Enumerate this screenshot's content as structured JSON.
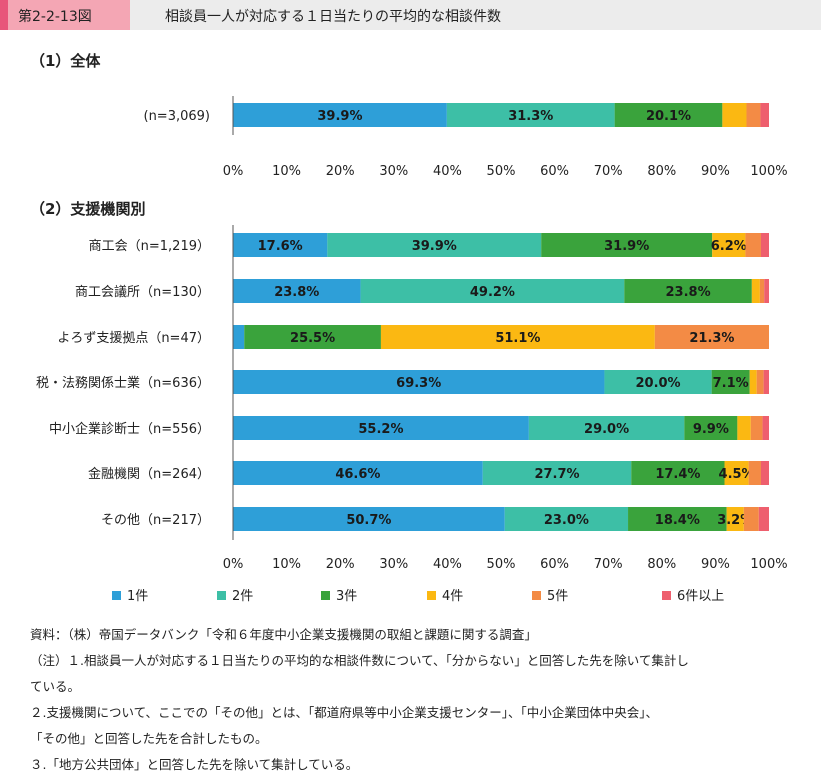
{
  "header": {
    "figure_number": "第2-2-13図",
    "title": "相談員一人が対応する１日当たりの平均的な相談件数"
  },
  "section1_title": "（1）全体",
  "section2_title": "（2）支援機関別",
  "colors": [
    "#2e9fd8",
    "#3dbfa6",
    "#3aa33c",
    "#fbb812",
    "#f38b45",
    "#ee5f6e"
  ],
  "chart_data": [
    {
      "type": "bar",
      "orientation": "horizontal",
      "stacked": "percent",
      "categories": [
        "(n=3,069)"
      ],
      "series": [
        {
          "name": "1件",
          "values": [
            39.9
          ]
        },
        {
          "name": "2件",
          "values": [
            31.3
          ]
        },
        {
          "name": "3件",
          "values": [
            20.1
          ]
        },
        {
          "name": "4件",
          "values": [
            4.5
          ]
        },
        {
          "name": "5件",
          "values": [
            2.6
          ]
        },
        {
          "name": "6件以上",
          "values": [
            1.6
          ]
        }
      ],
      "data_labels": [
        [
          "39.9%",
          "31.3%",
          "20.1%",
          "",
          "",
          ""
        ]
      ],
      "xticks": [
        "0%",
        "10%",
        "20%",
        "30%",
        "40%",
        "50%",
        "60%",
        "70%",
        "80%",
        "90%",
        "100%"
      ],
      "xlim": [
        0,
        100
      ]
    },
    {
      "type": "bar",
      "orientation": "horizontal",
      "stacked": "percent",
      "categories": [
        "商工会（n=1,219）",
        "商工会議所（n=130）",
        "よろず支援拠点（n=47）",
        "税・法務関係士業（n=636）",
        "中小企業診断士（n=556）",
        "金融機関（n=264）",
        "その他（n=217）"
      ],
      "series": [
        {
          "name": "1件",
          "values": [
            17.6,
            23.8,
            2.1,
            69.3,
            55.2,
            46.6,
            50.7
          ]
        },
        {
          "name": "2件",
          "values": [
            39.9,
            49.2,
            0.0,
            20.0,
            29.0,
            27.7,
            23.0
          ]
        },
        {
          "name": "3件",
          "values": [
            31.9,
            23.8,
            25.5,
            7.1,
            9.9,
            17.4,
            18.4
          ]
        },
        {
          "name": "4件",
          "values": [
            6.2,
            1.5,
            51.1,
            1.3,
            2.5,
            4.5,
            3.2
          ]
        },
        {
          "name": "5件",
          "values": [
            2.9,
            0.8,
            21.3,
            1.3,
            2.2,
            2.3,
            2.8
          ]
        },
        {
          "name": "6件以上",
          "values": [
            1.5,
            0.9,
            0.0,
            1.0,
            1.2,
            1.5,
            1.9
          ]
        }
      ],
      "data_labels": [
        [
          "17.6%",
          "39.9%",
          "31.9%",
          "6.2%",
          "",
          ""
        ],
        [
          "23.8%",
          "49.2%",
          "23.8%",
          "",
          "",
          ""
        ],
        [
          "",
          "",
          "25.5%",
          "51.1%",
          "21.3%",
          ""
        ],
        [
          "69.3%",
          "20.0%",
          "7.1%",
          "",
          "",
          ""
        ],
        [
          "55.2%",
          "29.0%",
          "9.9%",
          "",
          "",
          ""
        ],
        [
          "46.6%",
          "27.7%",
          "17.4%",
          "4.5%",
          "",
          ""
        ],
        [
          "50.7%",
          "23.0%",
          "18.4%",
          "3.2%",
          "",
          ""
        ]
      ],
      "xticks": [
        "0%",
        "10%",
        "20%",
        "30%",
        "40%",
        "50%",
        "60%",
        "70%",
        "80%",
        "90%",
        "100%"
      ],
      "xlim": [
        0,
        100
      ]
    }
  ],
  "legend": [
    "1件",
    "2件",
    "3件",
    "4件",
    "5件",
    "6件以上"
  ],
  "notes": [
    "資料：（株）帝国データバンク「令和６年度中小企業支援機関の取組と課題に関する調査」",
    "（注）１.相談員一人が対応する１日当たりの平均的な相談件数について、「分からない」と回答した先を除いて集計し",
    "ている。",
    "２.支援機関について、ここでの「その他」とは、「都道府県等中小企業支援センター」、「中小企業団体中央会」、",
    "「その他」と回答した先を合計したもの。",
    "３.「地方公共団体」と回答した先を除いて集計している。"
  ]
}
